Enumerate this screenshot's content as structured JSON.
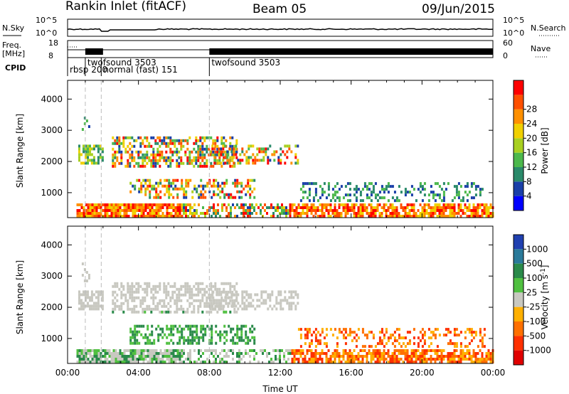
{
  "header": {
    "title": "Rankin Inlet (fitACF)",
    "beam": "Beam 05",
    "date": "09/Jun/2015"
  },
  "strips": {
    "noise": {
      "left_label": "N.Sky",
      "left_ticks": [
        "10^5",
        "10^0"
      ],
      "right_label": "N.Search",
      "right_ticks": [
        "10^5",
        "10^0"
      ]
    },
    "freq": {
      "left_label_1": "Freq.",
      "left_label_2": "[MHz]",
      "left_ticks": [
        "18",
        "8"
      ],
      "right_label": "Nave",
      "right_ticks": [
        "60",
        "0"
      ]
    },
    "cpid": {
      "label": "CPID",
      "segments": [
        {
          "start_h": 0.0,
          "label": "rbsp 200",
          "row": 2
        },
        {
          "start_h": 1.0,
          "label": "twofsound 3503",
          "row": 1
        },
        {
          "start_h": 1.9,
          "label": "normal (fast) 151",
          "row": 2
        },
        {
          "start_h": 8.0,
          "label": "twofsound 3503",
          "row": 1
        }
      ]
    }
  },
  "chart_data": [
    {
      "type": "heatmap",
      "name": "power",
      "ylabel": "Slant Range [km]",
      "xlabel": "",
      "xlim": [
        0,
        24
      ],
      "ylim": [
        200,
        4600
      ],
      "y_ticks": [
        1000,
        2000,
        3000,
        4000
      ],
      "x_ticks_hours": [
        0,
        4,
        8,
        12,
        16,
        20,
        24
      ],
      "colorbar": {
        "label": "Power [dB]",
        "ticks": [
          "4",
          "8",
          "12",
          "16",
          "20",
          "24",
          "28"
        ],
        "range": [
          0,
          30
        ],
        "colors": [
          "#0000ff",
          "#1a3fa8",
          "#2a8a6a",
          "#4cb84c",
          "#a8d020",
          "#f0d000",
          "#ff9000",
          "#ff5000",
          "#ff0000"
        ]
      }
    },
    {
      "type": "heatmap",
      "name": "velocity",
      "ylabel": "Slant Range [km]",
      "xlabel": "Time UT",
      "xlim": [
        0,
        24
      ],
      "ylim": [
        200,
        4600
      ],
      "y_ticks": [
        1000,
        2000,
        3000,
        4000
      ],
      "x_ticks": [
        "00:00",
        "04:00",
        "08:00",
        "12:00",
        "16:00",
        "20:00",
        "00:00"
      ],
      "colorbar": {
        "label": "Velocity [m s",
        "label_sup": "-1",
        "label_end": "]",
        "ticks": [
          "1000",
          "500",
          "100",
          "25",
          "-25",
          "-100",
          "-500",
          "-1000"
        ],
        "colors": [
          "#2040b0",
          "#2a7a9a",
          "#2a8a4a",
          "#50c040",
          "#c8c8c0",
          "#ffb000",
          "#ff7000",
          "#ff3000",
          "#e00000"
        ]
      }
    }
  ]
}
